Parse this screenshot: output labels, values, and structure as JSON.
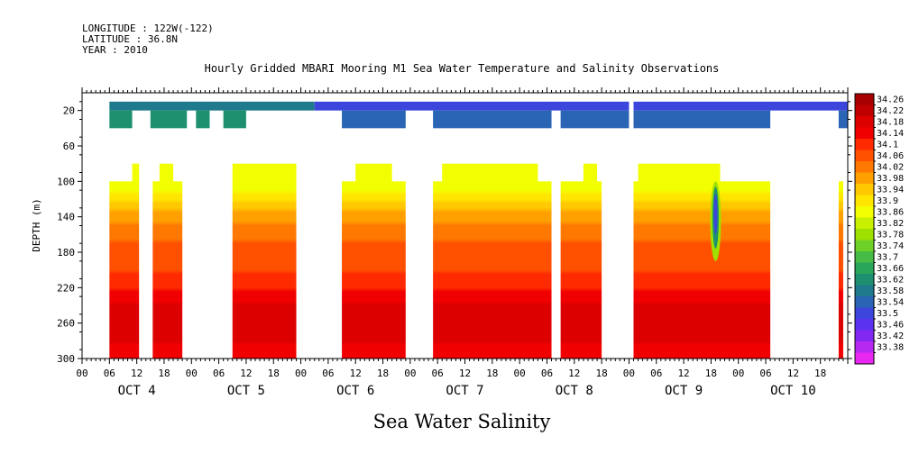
{
  "header": {
    "longitude": "LONGITUDE : 122W(-122)",
    "latitude": "LATITUDE : 36.8N",
    "year": "YEAR : 2010"
  },
  "chart_data": {
    "type": "heatmap",
    "title": "Hourly Gridded MBARI Mooring M1 Sea Water Temperature and Salinity Observations",
    "footer_label": "Sea Water Salinity",
    "ylabel": "DEPTH (m)",
    "ylim": [
      300,
      0
    ],
    "y_ticks": [
      20,
      60,
      100,
      140,
      180,
      220,
      260,
      300
    ],
    "x_hour_labels": [
      "00",
      "06",
      "12",
      "18",
      "00",
      "06",
      "12",
      "18",
      "00",
      "06",
      "12",
      "18",
      "00",
      "06",
      "12",
      "18",
      "00",
      "06",
      "12",
      "18",
      "00",
      "06",
      "12",
      "18",
      "00",
      "06",
      "12",
      "18"
    ],
    "x_day_labels": [
      "OCT 4",
      "OCT 5",
      "OCT 6",
      "OCT 7",
      "OCT 8",
      "OCT 9",
      "OCT 10"
    ],
    "x_range_hours": [
      0,
      168
    ],
    "colorbar_levels": [
      "34.26",
      "34.22",
      "34.18",
      "34.14",
      "34.1",
      "34.06",
      "34.02",
      "33.98",
      "33.94",
      "33.9",
      "33.86",
      "33.82",
      "33.78",
      "33.74",
      "33.7",
      "33.66",
      "33.62",
      "33.58",
      "33.54",
      "33.5",
      "33.46",
      "33.42",
      "33.38"
    ],
    "colorbar_colors": [
      "#a80000",
      "#c00000",
      "#dc0000",
      "#f00000",
      "#ff2a00",
      "#ff5000",
      "#ff7800",
      "#ffa000",
      "#ffc800",
      "#ffe600",
      "#f2ff00",
      "#c8f000",
      "#9ee000",
      "#6fd028",
      "#46bc46",
      "#2aa65a",
      "#1e9070",
      "#1e7a8c",
      "#2a64b4",
      "#3c46dc",
      "#5a32f0",
      "#8228f0",
      "#b428f0",
      "#e628f0"
    ],
    "profile_depths": [
      100,
      130,
      160,
      190,
      220,
      250,
      270,
      300
    ],
    "profile_values": [
      33.86,
      33.96,
      34.04,
      34.07,
      34.12,
      34.2,
      34.18,
      34.14
    ],
    "upper_layer": {
      "depth_range": [
        10,
        40
      ],
      "segments": [
        {
          "start": 6,
          "end": 51,
          "value": 33.66,
          "deep_gaps": [
            [
              11,
              13
            ],
            [
              13,
              15
            ],
            [
              23,
              25
            ],
            [
              28,
              31
            ],
            [
              36,
              51
            ]
          ]
        },
        {
          "start": 51,
          "end": 120,
          "value": 33.58,
          "deep_gaps": [
            [
              51,
              57
            ],
            [
              71,
              77
            ],
            [
              103,
              105
            ]
          ]
        },
        {
          "start": 121,
          "end": 168,
          "value": 33.56,
          "deep_gaps": [
            [
              151,
              166
            ]
          ]
        }
      ]
    },
    "deep_layer": {
      "depth_range": [
        80,
        300
      ],
      "segments": [
        {
          "start": 6,
          "end": 12.5,
          "top": 100,
          "inner_top": 80,
          "inner": [
            11,
            12.5
          ]
        },
        {
          "start": 15.5,
          "end": 22,
          "top": 100,
          "inner_top": 80,
          "inner": [
            17,
            20
          ]
        },
        {
          "start": 33,
          "end": 47,
          "top": 80
        },
        {
          "start": 57,
          "end": 71,
          "top": 100,
          "inner_top": 80,
          "inner": [
            60,
            68
          ]
        },
        {
          "start": 77,
          "end": 103,
          "top": 100,
          "inner_top": 80,
          "inner": [
            79,
            100
          ]
        },
        {
          "start": 105,
          "end": 114,
          "top": 100,
          "inner_top": 80,
          "inner": [
            110,
            113
          ]
        },
        {
          "start": 121,
          "end": 151,
          "top": 100,
          "inner_top": 80,
          "inner": [
            122,
            140
          ]
        },
        {
          "start": 166,
          "end": 167,
          "top": 100
        }
      ]
    },
    "anomaly": {
      "x": 139,
      "depth_top": 100,
      "depth_bottom": 190,
      "value": 33.54
    }
  }
}
